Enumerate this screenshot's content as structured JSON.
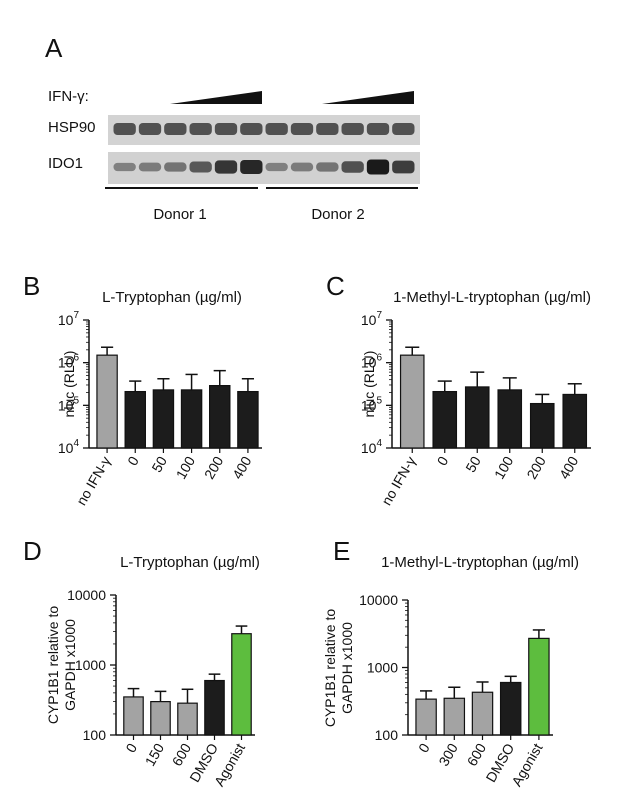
{
  "panels": {
    "A": "A",
    "B": "B",
    "C": "C",
    "D": "D",
    "E": "E"
  },
  "blot": {
    "ifn_label": "IFN-γ:",
    "rows": [
      "HSP90",
      "IDO1"
    ],
    "donors": [
      "Donor 1",
      "Donor 2"
    ],
    "lanes_per_donor": 6,
    "ido1_intensity": {
      "donor1": [
        0.25,
        0.3,
        0.35,
        0.55,
        0.8,
        0.9
      ],
      "donor2": [
        0.25,
        0.3,
        0.35,
        0.6,
        1.0,
        0.75
      ]
    }
  },
  "chart_data": [
    {
      "id": "B",
      "type": "bar",
      "title": "L-Tryptophan (µg/ml)",
      "ylabel": "nluc (RLU)",
      "yscale": "log",
      "ylim": [
        10000,
        10000000
      ],
      "ytick_bases": [
        "10",
        "10",
        "10",
        "10"
      ],
      "ytick_exps": [
        "7",
        "6",
        "5",
        "4"
      ],
      "categories": [
        "no IFN-γ",
        "0",
        "50",
        "100",
        "200",
        "400"
      ],
      "values": [
        1500000,
        210000,
        230000,
        230000,
        290000,
        210000
      ],
      "errors": [
        2300000,
        370000,
        420000,
        530000,
        650000,
        420000
      ],
      "colors": [
        "#a3a3a3",
        "#1c1c1c",
        "#1c1c1c",
        "#1c1c1c",
        "#1c1c1c",
        "#1c1c1c"
      ]
    },
    {
      "id": "C",
      "type": "bar",
      "title": "1-Methyl-L-tryptophan (µg/ml)",
      "ylabel": "nluc (RLU)",
      "yscale": "log",
      "ylim": [
        10000,
        10000000
      ],
      "ytick_bases": [
        "10",
        "10",
        "10",
        "10"
      ],
      "ytick_exps": [
        "7",
        "6",
        "5",
        "4"
      ],
      "categories": [
        "no IFN-γ",
        "0",
        "50",
        "100",
        "200",
        "400"
      ],
      "values": [
        1500000,
        210000,
        270000,
        230000,
        110000,
        180000
      ],
      "errors": [
        2300000,
        370000,
        600000,
        440000,
        180000,
        320000
      ],
      "colors": [
        "#a3a3a3",
        "#1c1c1c",
        "#1c1c1c",
        "#1c1c1c",
        "#1c1c1c",
        "#1c1c1c"
      ]
    },
    {
      "id": "D",
      "type": "bar",
      "title": "L-Tryptophan (µg/ml)",
      "ylabel": [
        "CYP1B1 relative to",
        "GAPDH x1000"
      ],
      "yscale": "log",
      "ylim": [
        100,
        10000
      ],
      "yticks": [
        "10000",
        "1000",
        "100"
      ],
      "categories": [
        "0",
        "150",
        "600",
        "DMSO",
        "Agonist"
      ],
      "values": [
        350,
        300,
        285,
        600,
        2800
      ],
      "errors": [
        460,
        420,
        450,
        740,
        3600
      ],
      "colors": [
        "#a3a3a3",
        "#a3a3a3",
        "#a3a3a3",
        "#1c1c1c",
        "#5dbd3e"
      ]
    },
    {
      "id": "E",
      "type": "bar",
      "title": "1-Methyl-L-tryptophan (µg/ml)",
      "ylabel": [
        "CYP1B1 relative to",
        "GAPDH x1000"
      ],
      "yscale": "log",
      "ylim": [
        100,
        10000
      ],
      "yticks": [
        "10000",
        "1000",
        "100"
      ],
      "categories": [
        "0",
        "300",
        "600",
        "DMSO",
        "Agonist"
      ],
      "values": [
        340,
        350,
        430,
        600,
        2700
      ],
      "errors": [
        450,
        510,
        610,
        740,
        3600
      ],
      "colors": [
        "#a3a3a3",
        "#a3a3a3",
        "#a3a3a3",
        "#1c1c1c",
        "#5dbd3e"
      ]
    }
  ]
}
